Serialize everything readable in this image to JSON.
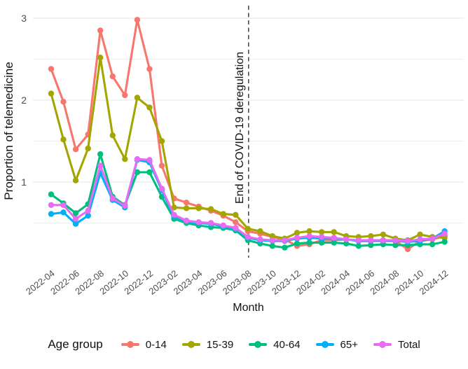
{
  "chart_data": {
    "type": "line",
    "title": "",
    "xlabel": "Month",
    "ylabel": "Proportion of telemedicine",
    "legend_title": "Age group",
    "legend_position": "bottom",
    "grid": "horizontal only, major and minor, light gray on white",
    "ylim": [
      0.08,
      3.15
    ],
    "yticks": [
      1,
      2,
      3
    ],
    "yminor": [
      0.5,
      1.5,
      2.5
    ],
    "x_tick_every": 2,
    "x": [
      "2022-04",
      "2022-05",
      "2022-06",
      "2022-07",
      "2022-08",
      "2022-09",
      "2022-10",
      "2022-11",
      "2022-12",
      "2023-01",
      "2023-02",
      "2023-03",
      "2023-04",
      "2023-05",
      "2023-06",
      "2023-07",
      "2023-08",
      "2023-09",
      "2023-10",
      "2023-11",
      "2023-12",
      "2024-01",
      "2024-02",
      "2024-03",
      "2024-04",
      "2024-05",
      "2024-06",
      "2024-07",
      "2024-08",
      "2024-09",
      "2024-10",
      "2024-11",
      "2024-12"
    ],
    "annotation": {
      "text": "End of COVID-19 deregulation",
      "x": "2023-08",
      "x_index": 16,
      "line_style": "dashed-vertical",
      "line_color": "#4d4d4d"
    },
    "series": [
      {
        "name": "0-14",
        "color": "#F8766D",
        "values": [
          2.38,
          1.98,
          1.4,
          1.58,
          2.85,
          2.29,
          2.06,
          2.98,
          2.38,
          1.2,
          0.8,
          0.75,
          0.7,
          0.65,
          0.59,
          0.51,
          0.4,
          0.37,
          0.33,
          0.3,
          0.22,
          0.24,
          0.29,
          0.29,
          0.3,
          0.28,
          0.28,
          0.29,
          0.28,
          0.18,
          0.28,
          0.3,
          0.34
        ]
      },
      {
        "name": "15-39",
        "color": "#A3A500",
        "values": [
          2.08,
          1.52,
          1.02,
          1.41,
          2.52,
          1.57,
          1.28,
          2.03,
          1.91,
          1.5,
          0.69,
          0.68,
          0.68,
          0.67,
          0.61,
          0.6,
          0.43,
          0.4,
          0.34,
          0.31,
          0.38,
          0.4,
          0.39,
          0.39,
          0.34,
          0.33,
          0.34,
          0.36,
          0.31,
          0.29,
          0.36,
          0.33,
          0.32
        ]
      },
      {
        "name": "40-64",
        "color": "#00BF7D",
        "values": [
          0.85,
          0.74,
          0.62,
          0.73,
          1.34,
          0.82,
          0.72,
          1.12,
          1.12,
          0.82,
          0.55,
          0.5,
          0.47,
          0.45,
          0.44,
          0.41,
          0.29,
          0.25,
          0.22,
          0.2,
          0.25,
          0.26,
          0.26,
          0.26,
          0.25,
          0.22,
          0.23,
          0.24,
          0.23,
          0.23,
          0.24,
          0.24,
          0.27
        ]
      },
      {
        "name": "65+",
        "color": "#00B0F6",
        "values": [
          0.61,
          0.63,
          0.49,
          0.59,
          1.11,
          0.78,
          0.69,
          1.27,
          1.24,
          0.9,
          0.58,
          0.52,
          0.5,
          0.49,
          0.46,
          0.43,
          0.32,
          0.29,
          0.28,
          0.28,
          0.31,
          0.32,
          0.31,
          0.31,
          0.3,
          0.28,
          0.28,
          0.28,
          0.28,
          0.27,
          0.28,
          0.31,
          0.4
        ]
      },
      {
        "name": "Total",
        "color": "#E76BF3",
        "values": [
          0.72,
          0.72,
          0.55,
          0.65,
          1.2,
          0.8,
          0.71,
          1.28,
          1.27,
          0.92,
          0.6,
          0.53,
          0.51,
          0.5,
          0.47,
          0.44,
          0.33,
          0.3,
          0.29,
          0.29,
          0.32,
          0.34,
          0.33,
          0.32,
          0.3,
          0.29,
          0.29,
          0.29,
          0.29,
          0.28,
          0.3,
          0.31,
          0.37
        ]
      }
    ],
    "axis_text_color": "#4d4d4d"
  }
}
